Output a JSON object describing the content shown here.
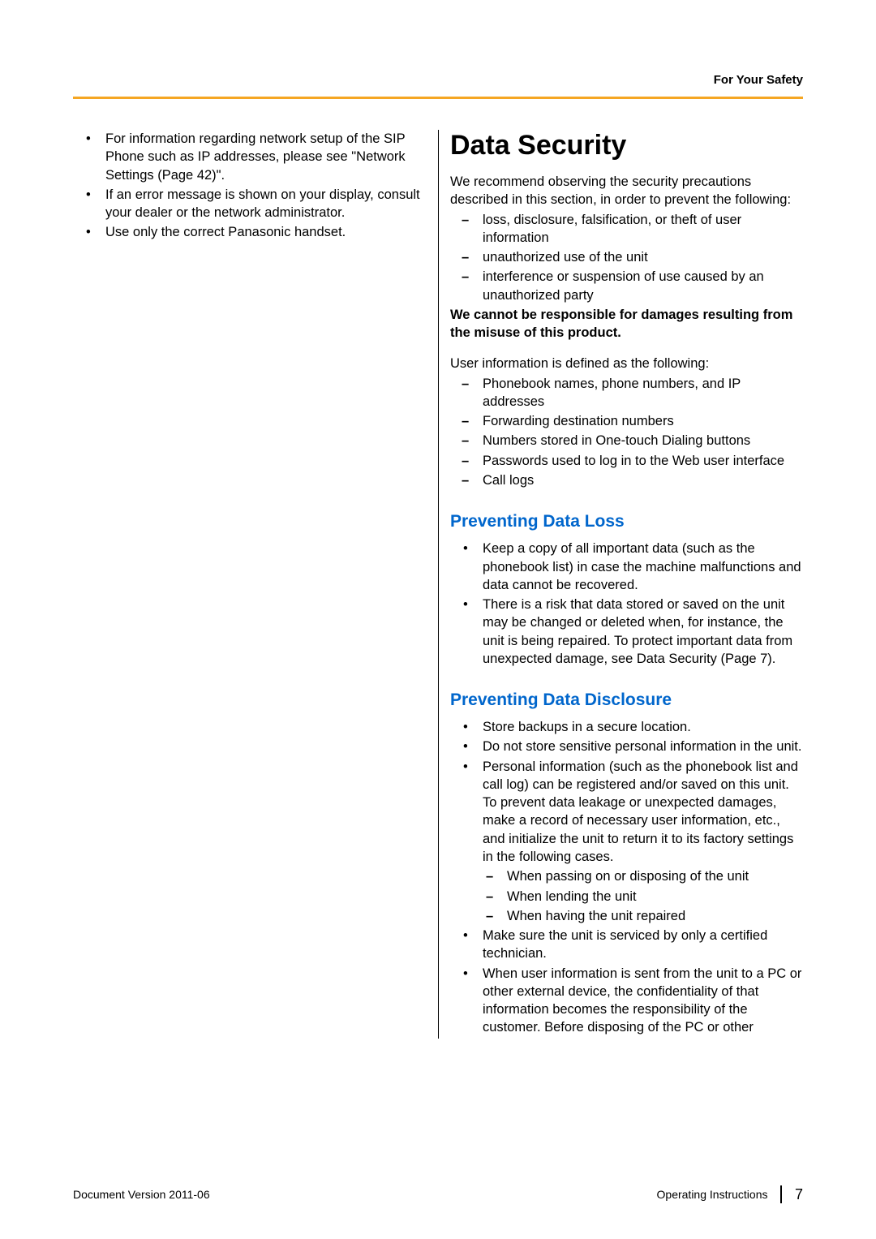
{
  "header": {
    "section_label": "For Your Safety"
  },
  "hr_color": "#f5a623",
  "left_col": {
    "bullets": [
      "For information regarding network setup of the SIP Phone such as IP addresses, please see \"Network Settings (Page 42)\".",
      "If an error message is shown on your display, consult your dealer or the network administrator.",
      "Use only the correct Panasonic handset."
    ]
  },
  "right_col": {
    "title": "Data Security",
    "intro": "We recommend observing the security precautions described in this section, in order to prevent the following:",
    "precaution_dashes": [
      "loss, disclosure, falsification, or theft of user information",
      "unauthorized use of the unit",
      "interference or suspension of use caused by an unauthorized party"
    ],
    "disclaimer_bold": "We cannot be responsible for damages resulting from the misuse of this product.",
    "userinfo_intro": "User information is defined as the following:",
    "userinfo_dashes": [
      "Phonebook names, phone numbers, and IP addresses",
      "Forwarding destination numbers",
      "Numbers stored in One-touch Dialing buttons",
      "Passwords used to log in to the Web user interface",
      "Call logs"
    ],
    "sections": [
      {
        "heading": "Preventing Data Loss",
        "heading_color": "#0066cc",
        "bullets": [
          {
            "text": "Keep a copy of all important data (such as the phonebook list) in case the machine malfunctions and data cannot be recovered."
          },
          {
            "text": "There is a risk that data stored or saved on the unit may be changed or deleted when, for instance, the unit is being repaired. To protect important data from unexpected damage, see Data Security (Page 7)."
          }
        ]
      },
      {
        "heading": "Preventing Data Disclosure",
        "heading_color": "#0066cc",
        "bullets": [
          {
            "text": "Store backups in a secure location."
          },
          {
            "text": "Do not store sensitive personal information in the unit."
          },
          {
            "text": "Personal information (such as the phonebook list and call log) can be registered and/or saved on this unit. To prevent data leakage or unexpected damages, make a record of necessary user information, etc., and initialize the unit to return it to its factory settings in the following cases.",
            "sub": [
              "When passing on or disposing of the unit",
              "When lending the unit",
              "When having the unit repaired"
            ]
          },
          {
            "text": "Make sure the unit is serviced by only a certified technician."
          },
          {
            "text": "When user information is sent from the unit to a PC or other external device, the confidentiality of that information becomes the responsibility of the customer. Before disposing of the PC or other"
          }
        ]
      }
    ]
  },
  "footer": {
    "left": "Document Version  2011-06",
    "right_label": "Operating Instructions",
    "page_number": "7"
  }
}
